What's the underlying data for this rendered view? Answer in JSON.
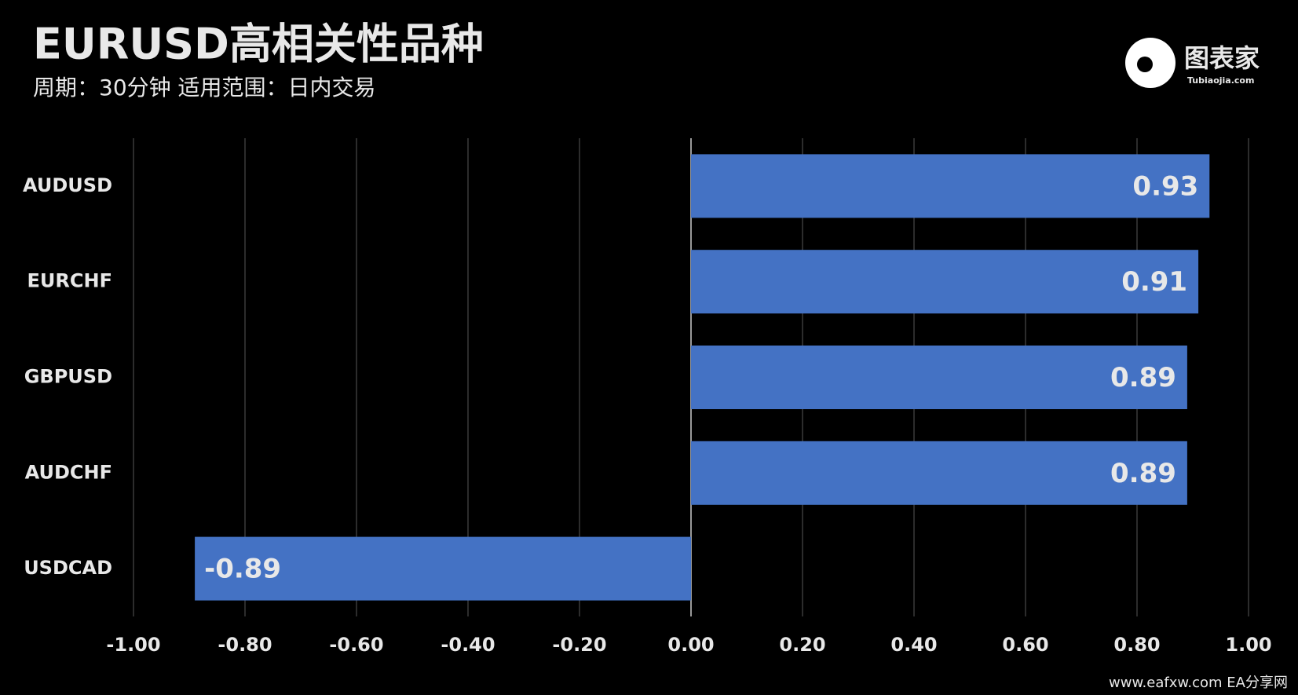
{
  "chart_data": {
    "type": "barh",
    "title": "EURUSD高相关性品种",
    "subtitle": "周期：30分钟  适用范围：日内交易",
    "categories": [
      "AUDUSD",
      "EURCHF",
      "GBPUSD",
      "AUDCHF",
      "USDCAD"
    ],
    "values": [
      0.93,
      0.91,
      0.89,
      0.89,
      -0.89
    ],
    "color": "#4472c4",
    "xlim": [
      -1,
      1
    ],
    "xticks": [
      {
        "value": -1,
        "label": "-1.00"
      },
      {
        "value": -0.8,
        "label": "-0.80"
      },
      {
        "value": -0.6,
        "label": "-0.60"
      },
      {
        "value": -0.4,
        "label": "-0.40"
      },
      {
        "value": -0.2,
        "label": "-0.20"
      },
      {
        "value": 0,
        "label": "0.00"
      },
      {
        "value": 0.2,
        "label": "0.20"
      },
      {
        "value": 0.4,
        "label": "0.40"
      },
      {
        "value": 0.6,
        "label": "0.60"
      },
      {
        "value": 0.8,
        "label": "0.80"
      },
      {
        "value": 1,
        "label": "1.00"
      }
    ],
    "grid": true
  },
  "logo": {
    "name": "图表家",
    "url": "Tubiaojia.com"
  },
  "footer": "www.eafxw.com   EA分享网"
}
